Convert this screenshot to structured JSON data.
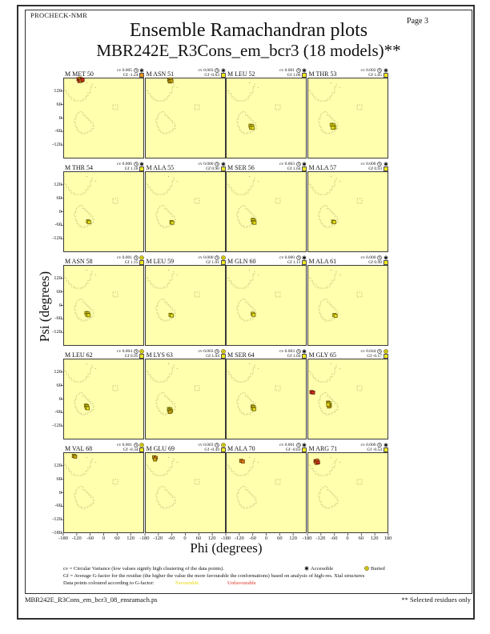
{
  "page": {
    "app_label": "PROCHECK-NMR",
    "page_label": "Page  3",
    "title": "Ensemble Ramachandran plots",
    "subtitle": "MBR242E_R3Cons_em_bcr3 (18 models)**",
    "footer_left": "MBR242E_R3Cons_em_bcr3_08_ensramach.ps",
    "footer_right": "** Selected residues only"
  },
  "labels": {
    "cv": "cv",
    "gf": "Gf"
  },
  "axes": {
    "xlabel": "Phi (degrees)",
    "ylabel": "Psi (degrees)",
    "x_ticks": [
      -180,
      -120,
      -60,
      0,
      60,
      120,
      180
    ],
    "y_ticks": [
      120,
      60,
      0,
      -60,
      -120
    ],
    "y_end_tick": "-180",
    "x_end_tick": "180"
  },
  "legend": {
    "cv_text": "cv = Circular Variance (low values signify high clustering of the data points).",
    "accessible_label": "Accessible",
    "buried_label": "Buried",
    "gf_text": "Gf = Average G-factor for the residue (the higher the value the more favourable the conformations) based on analysis of high-res. Xtal structures",
    "points_text": "Data points coloured according to G-factor:",
    "favourable_label": "Favourable",
    "unfavourable_label": "Unfavourable"
  },
  "colors": {
    "plot_bg": "#ffffad",
    "plot_border": "#3a3a3a",
    "region": "#8e8e60",
    "tick": "#333333",
    "gf_yellow": "#f0e81e",
    "gf_orange": "#e8921c",
    "points": {
      "f": {
        "fill": "#e6df18",
        "stroke": "#6a6000"
      },
      "o": {
        "fill": "#c9a50e",
        "stroke": "#5f4c00"
      },
      "g": {
        "fill": "#dd7d16",
        "stroke": "#6e3a04"
      },
      "r": {
        "fill": "#cf2f1d",
        "stroke": "#5e130a"
      }
    }
  },
  "chart_data": {
    "type": "scatter",
    "title": "Ensemble Ramachandran plots",
    "subtitle": "MBR242E_R3Cons_em_bcr3 (18 models)**",
    "xlabel": "Phi (degrees)",
    "ylabel": "Psi (degrees)",
    "xlim": [
      -180,
      180
    ],
    "ylim": [
      -180,
      180
    ],
    "grid_shape": [
      5,
      4
    ],
    "subplots": [
      {
        "residue": "M MET 50",
        "cv": "0.005",
        "gf": "-1.24",
        "access": "accessible",
        "gf_box": "orange",
        "points": [
          [
            -112,
            173,
            "r"
          ],
          [
            -105,
            176,
            "o"
          ],
          [
            -98,
            172,
            "r"
          ],
          [
            -108,
            165,
            "r"
          ],
          [
            -100,
            166,
            "o"
          ],
          [
            -94,
            170,
            "r"
          ]
        ]
      },
      {
        "residue": "M ASN 51",
        "cv": "0.003",
        "gf": "-0.63",
        "access": "accessible",
        "gf_box": "yellow",
        "points": [
          [
            -72,
            170,
            "o"
          ],
          [
            -65,
            172,
            "o"
          ],
          [
            -69,
            163,
            "o"
          ],
          [
            -62,
            165,
            "o"
          ]
        ]
      },
      {
        "residue": "M LEU 52",
        "cv": "0.001",
        "gf": "1.06",
        "access": "accessible",
        "gf_box": "yellow",
        "points": [
          [
            -70,
            -34,
            "f"
          ],
          [
            -63,
            -36,
            "f"
          ],
          [
            -68,
            -42,
            "f"
          ],
          [
            -61,
            -44,
            "f"
          ]
        ]
      },
      {
        "residue": "M THR 53",
        "cv": "0.002",
        "gf": "1.05",
        "access": "accessible",
        "gf_box": "yellow",
        "points": [
          [
            -72,
            -30,
            "f"
          ],
          [
            -64,
            -33,
            "f"
          ],
          [
            -60,
            -41,
            "f"
          ],
          [
            -67,
            -43,
            "f"
          ]
        ]
      },
      {
        "residue": "M THR 54",
        "cv": "0.000",
        "gf": "1.18",
        "access": "accessible",
        "gf_box": "yellow",
        "points": [
          [
            -70,
            -43,
            "f"
          ],
          [
            -65,
            -46,
            "f"
          ]
        ]
      },
      {
        "residue": "M ALA 55",
        "cv": "0.000",
        "gf": "0.90",
        "access": "accessible",
        "gf_box": "yellow",
        "points": [
          [
            -62,
            -46,
            "f"
          ],
          [
            -58,
            -49,
            "f"
          ]
        ]
      },
      {
        "residue": "M SER 56",
        "cv": "0.003",
        "gf": "1.04",
        "access": "accessible",
        "gf_box": "yellow",
        "points": [
          [
            -60,
            -36,
            "f"
          ],
          [
            -55,
            -40,
            "f"
          ],
          [
            -57,
            -46,
            "f"
          ],
          [
            -52,
            -49,
            "f"
          ]
        ]
      },
      {
        "residue": "M ALA 57",
        "cv": "0.000",
        "gf": "0.93",
        "access": "accessible",
        "gf_box": "yellow",
        "points": [
          [
            -66,
            -44,
            "f"
          ],
          [
            -61,
            -46,
            "f"
          ]
        ]
      },
      {
        "residue": "M ASN 58",
        "cv": "0.001",
        "gf": "1.15",
        "access": "buried",
        "gf_box": "yellow",
        "points": [
          [
            -77,
            -34,
            "f"
          ],
          [
            -70,
            -36,
            "f"
          ],
          [
            -73,
            -42,
            "f"
          ],
          [
            -67,
            -44,
            "f"
          ]
        ]
      },
      {
        "residue": "M LEU 59",
        "cv": "0.000",
        "gf": "1.01",
        "access": "buried",
        "gf_box": "yellow",
        "points": [
          [
            -66,
            -42,
            "f"
          ],
          [
            -61,
            -45,
            "f"
          ]
        ]
      },
      {
        "residue": "M GLN 60",
        "cv": "0.000",
        "gf": "1.11",
        "access": "accessible",
        "gf_box": "yellow",
        "points": [
          [
            -60,
            -37,
            "f"
          ],
          [
            -56,
            -42,
            "f"
          ]
        ]
      },
      {
        "residue": "M ALA 61",
        "cv": "0.000",
        "gf": "0.98",
        "access": "accessible",
        "gf_box": "yellow",
        "points": [
          [
            -60,
            -43,
            "f"
          ],
          [
            -55,
            -46,
            "f"
          ]
        ]
      },
      {
        "residue": "M LEU 62",
        "cv": "0.004",
        "gf": "0.95",
        "access": "buried",
        "gf_box": "yellow",
        "points": [
          [
            -79,
            -29,
            "f"
          ],
          [
            -74,
            -32,
            "f"
          ],
          [
            -76,
            -38,
            "f"
          ],
          [
            -71,
            -41,
            "f"
          ]
        ]
      },
      {
        "residue": "M LYS 63",
        "cv": "0.003",
        "gf": "1.04",
        "access": "buried",
        "gf_box": "yellow",
        "points": [
          [
            -73,
            -44,
            "f"
          ],
          [
            -67,
            -46,
            "f"
          ],
          [
            -71,
            -51,
            "f"
          ],
          [
            -64,
            -53,
            "f"
          ],
          [
            -69,
            -57,
            "o"
          ]
        ]
      },
      {
        "residue": "M SER 64",
        "cv": "0.003",
        "gf": "1.04",
        "access": "accessible",
        "gf_box": "yellow",
        "points": [
          [
            -61,
            -33,
            "f"
          ],
          [
            -56,
            -36,
            "f"
          ],
          [
            -59,
            -42,
            "f"
          ],
          [
            -54,
            -45,
            "f"
          ]
        ]
      },
      {
        "residue": "M GLY 65",
        "cv": "0.044",
        "gf": "-0.17",
        "access": "buried",
        "gf_box": "yellow",
        "points": [
          [
            -162,
            31,
            "r"
          ],
          [
            -155,
            29,
            "r"
          ],
          [
            -88,
            -16,
            "o"
          ],
          [
            -82,
            -19,
            "f"
          ],
          [
            -86,
            -25,
            "f"
          ],
          [
            -80,
            -28,
            "f"
          ],
          [
            -84,
            -33,
            "o"
          ],
          [
            -88,
            -24,
            "f"
          ]
        ]
      },
      {
        "residue": "M VAL 68",
        "cv": "0.001",
        "gf": "-0.34",
        "access": "buried",
        "gf_box": "yellow",
        "points": [
          [
            -133,
            164,
            "o"
          ],
          [
            -127,
            161,
            "o"
          ]
        ]
      },
      {
        "residue": "M GLU 69",
        "cv": "0.003",
        "gf": "-0.49",
        "access": "buried",
        "gf_box": "yellow",
        "points": [
          [
            -139,
            158,
            "o"
          ],
          [
            -132,
            155,
            "g"
          ],
          [
            -135,
            148,
            "o"
          ]
        ]
      },
      {
        "residue": "M ALA 70",
        "cv": "0.001",
        "gf": "-0.83",
        "access": "accessible",
        "gf_box": "yellow",
        "points": [
          [
            -111,
            142,
            "g"
          ],
          [
            -104,
            139,
            "g"
          ]
        ]
      },
      {
        "residue": "M ARG 71",
        "cv": "0.006",
        "gf": "-0.54",
        "access": "accessible",
        "gf_box": "yellow",
        "points": [
          [
            -144,
            140,
            "r"
          ],
          [
            -137,
            143,
            "g"
          ],
          [
            -140,
            133,
            "g"
          ],
          [
            -133,
            135,
            "r"
          ]
        ]
      }
    ]
  }
}
